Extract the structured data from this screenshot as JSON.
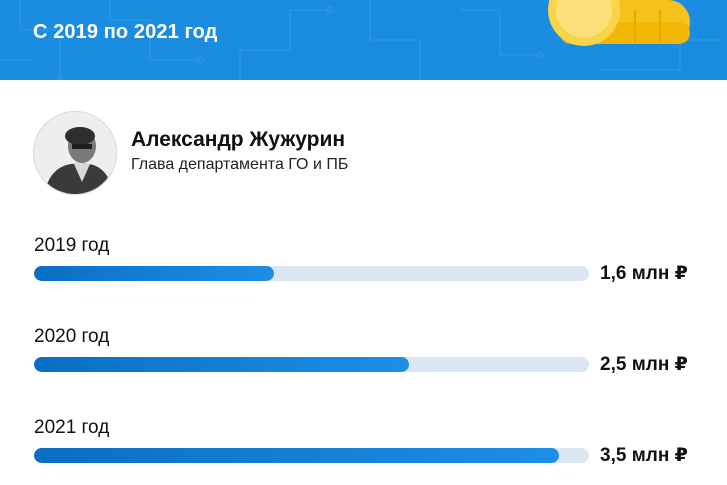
{
  "header": {
    "subtitle": "С 2019 по 2021 год",
    "bg_color": "#1a8de0",
    "decoration": "gold-coins"
  },
  "person": {
    "name": "Александр Жужурин",
    "role": "Глава департамента ГО и ПБ"
  },
  "chart_data": {
    "type": "bar",
    "orientation": "horizontal",
    "categories": [
      "2019 год",
      "2020 год",
      "2021 год"
    ],
    "values": [
      1.6,
      2.5,
      3.5
    ],
    "value_labels": [
      "1,6 млн ₽",
      "2,5 млн ₽",
      "3,5 млн ₽"
    ],
    "unit": "млн ₽",
    "xlim": [
      0,
      3.7
    ],
    "grid": false,
    "bar_color": "#1a8de0",
    "track_color": "#dbe6f3"
  }
}
